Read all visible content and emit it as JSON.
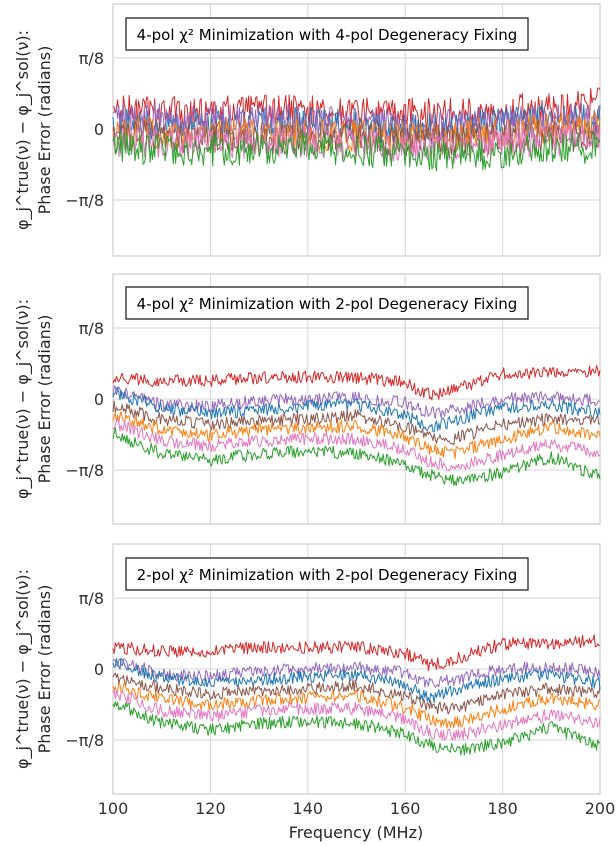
{
  "figure": {
    "ylabel_line1": "φ_j^true(ν) − φ_j^sol(ν):",
    "ylabel_line2": "Phase Error (radians)",
    "xlabel": "Frequency (MHz)",
    "x_ticks": [
      "100",
      "120",
      "140",
      "160",
      "180",
      "200"
    ],
    "y_ticks": [
      "π/8",
      "0",
      "−π/8"
    ]
  },
  "chart_data": [
    {
      "type": "line",
      "title": "4-pol χ² Minimization with 4-pol Degeneracy Fixing",
      "xlim": [
        100,
        200
      ],
      "ylim": [
        -0.5,
        0.5
      ],
      "x": [
        100,
        110,
        120,
        130,
        140,
        150,
        160,
        170,
        180,
        190,
        200
      ],
      "series": [
        {
          "color": "#d62728",
          "values": [
            0.1,
            0.1,
            0.09,
            0.1,
            0.1,
            0.09,
            0.08,
            0.09,
            0.1,
            0.12,
            0.14
          ]
        },
        {
          "color": "#1f77b4",
          "values": [
            0.04,
            0.03,
            0.02,
            0.03,
            0.03,
            0.02,
            0.0,
            0.0,
            0.03,
            0.05,
            0.06
          ]
        },
        {
          "color": "#9467bd",
          "values": [
            0.06,
            0.05,
            0.04,
            0.05,
            0.04,
            0.03,
            0.02,
            0.02,
            0.04,
            0.05,
            0.06
          ]
        },
        {
          "color": "#ff7f0e",
          "values": [
            -0.02,
            -0.02,
            -0.03,
            -0.03,
            -0.03,
            -0.04,
            -0.05,
            -0.04,
            -0.02,
            0.0,
            0.01
          ]
        },
        {
          "color": "#8c564b",
          "values": [
            -0.04,
            -0.04,
            -0.05,
            -0.05,
            -0.05,
            -0.05,
            -0.06,
            -0.06,
            -0.05,
            -0.04,
            -0.03
          ]
        },
        {
          "color": "#e377c2",
          "values": [
            -0.06,
            -0.07,
            -0.08,
            -0.08,
            -0.07,
            -0.08,
            -0.1,
            -0.1,
            -0.08,
            -0.06,
            -0.05
          ]
        },
        {
          "color": "#2ca02c",
          "values": [
            -0.1,
            -0.11,
            -0.12,
            -0.11,
            -0.1,
            -0.12,
            -0.14,
            -0.15,
            -0.14,
            -0.11,
            -0.1
          ]
        }
      ]
    },
    {
      "type": "line",
      "title": "4-pol χ² Minimization with 2-pol Degeneracy Fixing",
      "xlim": [
        100,
        200
      ],
      "ylim": [
        -0.5,
        0.5
      ],
      "x": [
        100,
        110,
        120,
        130,
        140,
        150,
        160,
        165,
        170,
        180,
        190,
        200
      ],
      "series": [
        {
          "color": "#d62728",
          "values": [
            0.12,
            0.1,
            0.1,
            0.12,
            0.12,
            0.12,
            0.09,
            0.02,
            0.05,
            0.14,
            0.14,
            0.16
          ]
        },
        {
          "color": "#9467bd",
          "values": [
            0.05,
            -0.03,
            -0.04,
            -0.01,
            0.0,
            0.01,
            -0.02,
            -0.08,
            -0.06,
            0.0,
            0.01,
            -0.01
          ]
        },
        {
          "color": "#1f77b4",
          "values": [
            0.04,
            -0.05,
            -0.08,
            -0.06,
            -0.04,
            -0.03,
            -0.09,
            -0.16,
            -0.12,
            -0.05,
            -0.03,
            -0.08
          ]
        },
        {
          "color": "#8c564b",
          "values": [
            -0.04,
            -0.11,
            -0.14,
            -0.12,
            -0.11,
            -0.09,
            -0.15,
            -0.21,
            -0.22,
            -0.14,
            -0.11,
            -0.13
          ]
        },
        {
          "color": "#ff7f0e",
          "values": [
            -0.09,
            -0.17,
            -0.2,
            -0.17,
            -0.16,
            -0.15,
            -0.21,
            -0.28,
            -0.3,
            -0.22,
            -0.16,
            -0.2
          ]
        },
        {
          "color": "#e377c2",
          "values": [
            -0.13,
            -0.23,
            -0.26,
            -0.23,
            -0.22,
            -0.22,
            -0.28,
            -0.35,
            -0.37,
            -0.31,
            -0.25,
            -0.3
          ]
        },
        {
          "color": "#2ca02c",
          "values": [
            -0.19,
            -0.3,
            -0.34,
            -0.3,
            -0.29,
            -0.3,
            -0.36,
            -0.42,
            -0.45,
            -0.41,
            -0.32,
            -0.43
          ]
        }
      ]
    },
    {
      "type": "line",
      "title": "2-pol χ² Minimization with 2-pol Degeneracy Fixing",
      "xlim": [
        100,
        200
      ],
      "ylim": [
        -0.5,
        0.5
      ],
      "x": [
        100,
        110,
        120,
        130,
        140,
        150,
        160,
        165,
        170,
        180,
        190,
        200
      ],
      "series": [
        {
          "color": "#d62728",
          "values": [
            0.12,
            0.1,
            0.1,
            0.12,
            0.12,
            0.12,
            0.09,
            0.02,
            0.05,
            0.14,
            0.14,
            0.16
          ]
        },
        {
          "color": "#9467bd",
          "values": [
            0.05,
            -0.03,
            -0.04,
            -0.01,
            0.0,
            0.01,
            -0.02,
            -0.08,
            -0.06,
            0.0,
            0.01,
            -0.01
          ]
        },
        {
          "color": "#1f77b4",
          "values": [
            0.04,
            -0.05,
            -0.08,
            -0.06,
            -0.04,
            -0.03,
            -0.09,
            -0.16,
            -0.12,
            -0.05,
            -0.03,
            -0.08
          ]
        },
        {
          "color": "#8c564b",
          "values": [
            -0.04,
            -0.11,
            -0.14,
            -0.12,
            -0.11,
            -0.09,
            -0.15,
            -0.21,
            -0.22,
            -0.14,
            -0.11,
            -0.13
          ]
        },
        {
          "color": "#ff7f0e",
          "values": [
            -0.09,
            -0.17,
            -0.2,
            -0.17,
            -0.16,
            -0.15,
            -0.21,
            -0.28,
            -0.3,
            -0.22,
            -0.16,
            -0.2
          ]
        },
        {
          "color": "#e377c2",
          "values": [
            -0.13,
            -0.23,
            -0.26,
            -0.23,
            -0.22,
            -0.22,
            -0.28,
            -0.35,
            -0.37,
            -0.31,
            -0.25,
            -0.3
          ]
        },
        {
          "color": "#2ca02c",
          "values": [
            -0.19,
            -0.3,
            -0.34,
            -0.3,
            -0.29,
            -0.3,
            -0.36,
            -0.42,
            -0.45,
            -0.41,
            -0.32,
            -0.43
          ]
        }
      ]
    }
  ]
}
